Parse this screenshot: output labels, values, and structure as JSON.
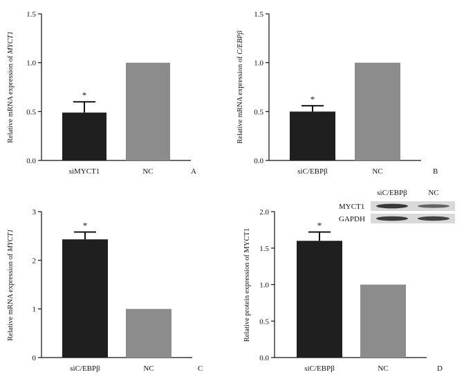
{
  "colors": {
    "siRNA_bar": "#1f1f1f",
    "nc_bar": "#8c8c8c",
    "axis": "#111111",
    "blot_band": "#2a2a2a"
  },
  "chart_data": [
    {
      "type": "bar",
      "panel": "A",
      "ylabel_prefix": "Relative mRNA expression of ",
      "ylabel_gene": "MYCT1",
      "categories": [
        "siMYCT1",
        "NC"
      ],
      "values": [
        0.49,
        1.0
      ],
      "errors": [
        0.11,
        null
      ],
      "significance": [
        "*",
        ""
      ],
      "yticks": [
        "0.0",
        "0.5",
        "1.0",
        "1.5"
      ],
      "ylim": [
        0,
        1.5
      ]
    },
    {
      "type": "bar",
      "panel": "B",
      "ylabel_prefix": "Relative mRNA expression of ",
      "ylabel_gene": "C/EBPβ",
      "categories": [
        "siC/EBPβ",
        "NC"
      ],
      "values": [
        0.5,
        1.0
      ],
      "errors": [
        0.06,
        null
      ],
      "significance": [
        "*",
        ""
      ],
      "yticks": [
        "0.0",
        "0.5",
        "1.0",
        "1.5"
      ],
      "ylim": [
        0,
        1.5
      ]
    },
    {
      "type": "bar",
      "panel": "C",
      "ylabel_prefix": "Relative mRNA expression of ",
      "ylabel_gene": "MYCT1",
      "categories": [
        "siC/EBPβ",
        "NC"
      ],
      "values": [
        2.43,
        1.0
      ],
      "errors": [
        0.15,
        null
      ],
      "significance": [
        "*",
        ""
      ],
      "yticks": [
        "0",
        "1",
        "2",
        "3"
      ],
      "ylim": [
        0,
        3
      ]
    },
    {
      "type": "bar",
      "panel": "D",
      "ylabel_prefix": "Relative protein expression of MYCT1",
      "ylabel_gene": "",
      "categories": [
        "siC/EBPβ",
        "NC"
      ],
      "values": [
        1.6,
        1.0
      ],
      "errors": [
        0.12,
        null
      ],
      "significance": [
        "*",
        ""
      ],
      "yticks": [
        "0.0",
        "0.5",
        "1.0",
        "1.5",
        "2.0"
      ],
      "ylim": [
        0,
        2.0
      ]
    }
  ],
  "western_blot": {
    "lane_labels": [
      "siC/EBPβ",
      "NC"
    ],
    "bands": [
      "MYCT1",
      "GAPDH"
    ],
    "band_intensity": {
      "MYCT1": [
        0.95,
        0.55
      ],
      "GAPDH": [
        0.9,
        0.85
      ]
    }
  }
}
